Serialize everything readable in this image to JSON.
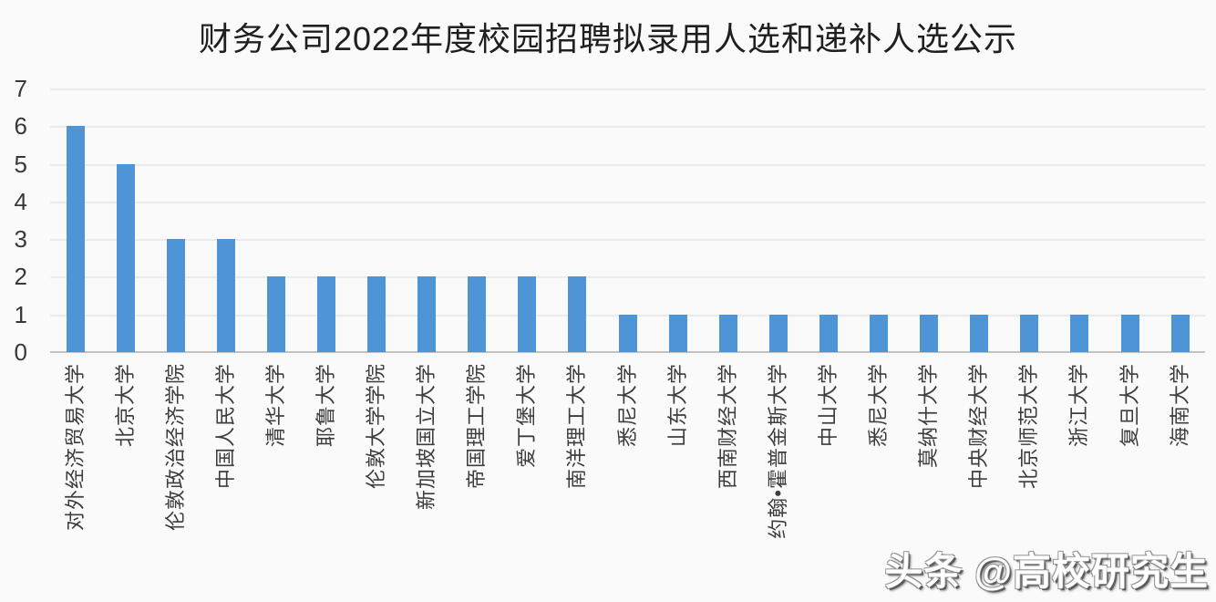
{
  "page": {
    "background": "#fafafa"
  },
  "watermark": {
    "text": "头条 @高校研究生"
  },
  "chart_data": {
    "type": "bar",
    "title": "财务公司2022年度校园招聘拟录用人选和递补人选公示",
    "categories": [
      "对外经济贸易大学",
      "北京大学",
      "伦敦政治经济学院",
      "中国人民大学",
      "清华大学",
      "耶鲁大学",
      "伦敦大学学院",
      "新加坡国立大学",
      "帝国理工学院",
      "爱丁堡大学",
      "南洋理工大学",
      "悉尼大学",
      "山东大学",
      "西南财经大学",
      "约翰•霍普金斯大学",
      "中山大学",
      "悉尼大学",
      "莫纳什大学",
      "中央财经大学",
      "北京师范大学",
      "浙江大学",
      "复旦大学",
      "海南大学"
    ],
    "values": [
      6,
      5,
      3,
      3,
      2,
      2,
      2,
      2,
      2,
      2,
      2,
      1,
      1,
      1,
      1,
      1,
      1,
      1,
      1,
      1,
      1,
      1,
      1
    ],
    "xlabel": "",
    "ylabel": "",
    "ylim": [
      0,
      7
    ],
    "yticks": [
      0,
      1,
      2,
      3,
      4,
      5,
      6,
      7
    ],
    "grid": true,
    "legend_position": "none",
    "bar_color": "#4e95d8",
    "grid_color": "#dcdcdc",
    "axis_line_color": "#c2c2c2",
    "tick_label_color": "#383838",
    "category_label_color": "#3d3d3d",
    "title_color": "#1f1f1f"
  }
}
